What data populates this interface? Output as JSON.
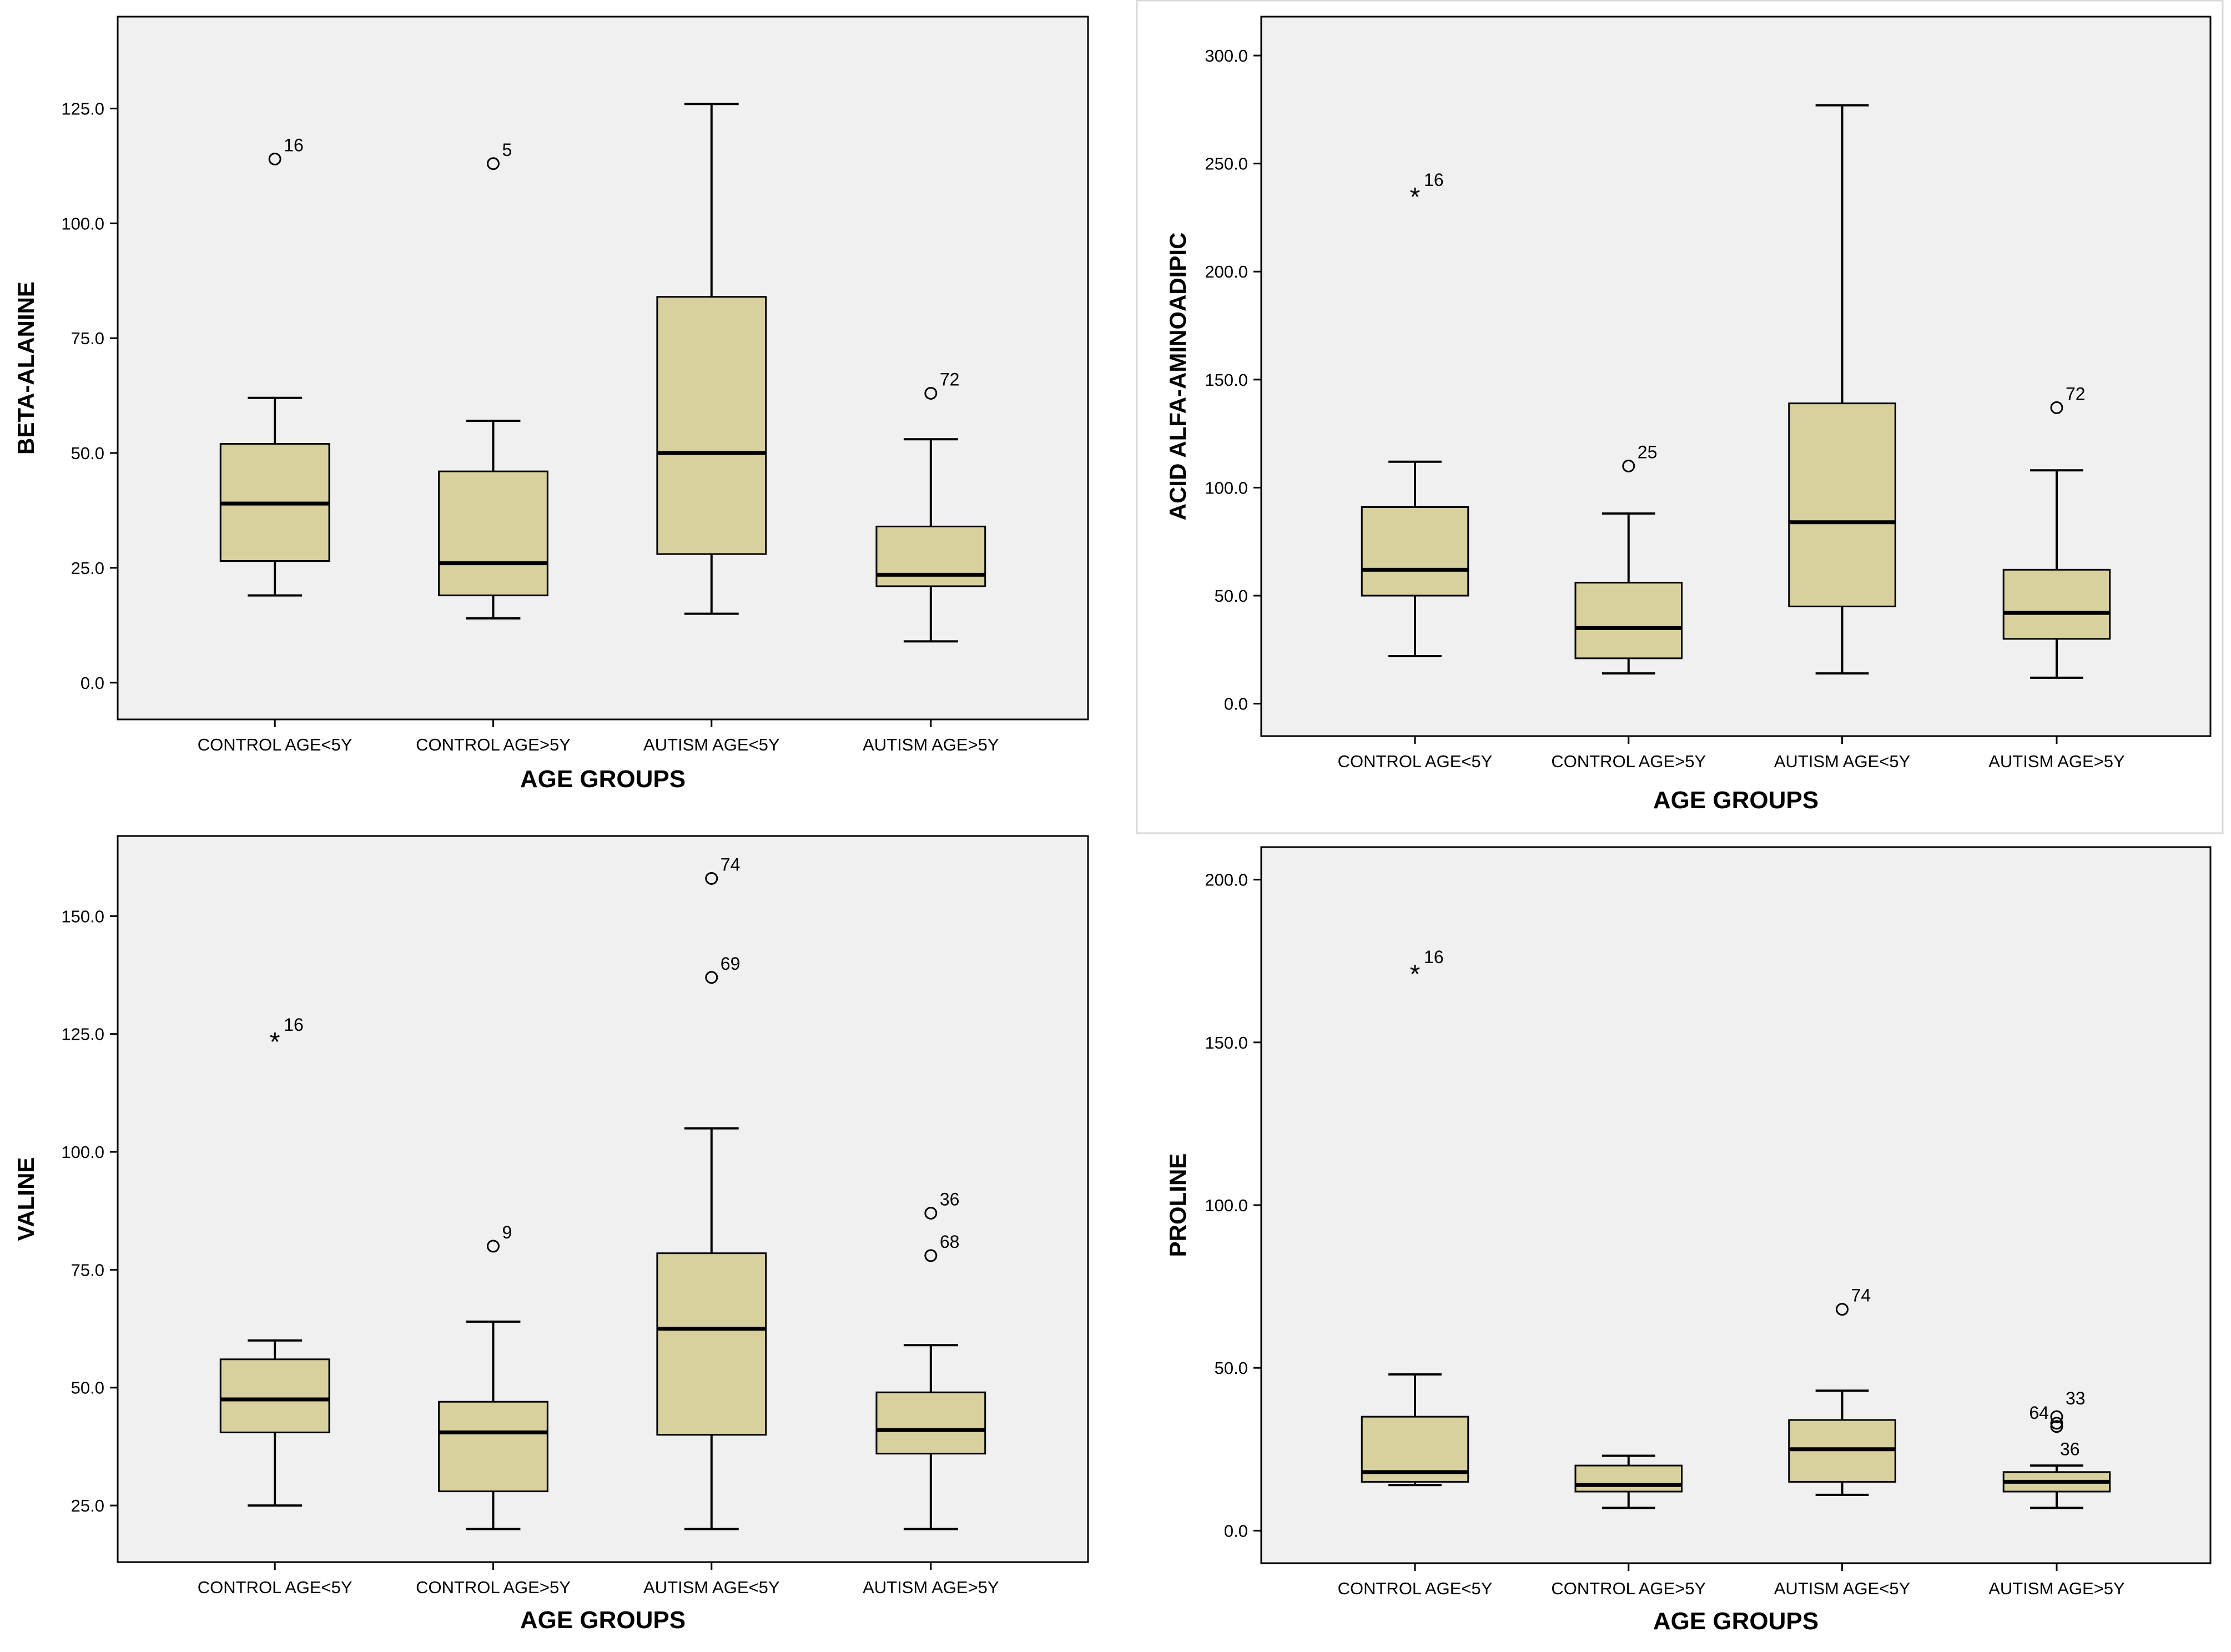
{
  "colors": {
    "plot_background": "#f0f0f0",
    "box_fill": "#d8d19e",
    "line": "#000000",
    "page_background": "#ffffff"
  },
  "chart_data": [
    {
      "type": "box",
      "title": "",
      "xlabel": "AGE GROUPS",
      "ylabel": "BETA-ALANINE",
      "categories": [
        "CONTROL AGE<5Y",
        "CONTROL AGE>5Y",
        "AUTISM AGE<5Y",
        "AUTISM AGE>5Y"
      ],
      "ylim": [
        -8,
        145
      ],
      "yticks": [
        0,
        25,
        50,
        75,
        100,
        125
      ],
      "ytick_labels": [
        "0.0",
        "25.0",
        "50.0",
        "75.0",
        "100.0",
        "125.0"
      ],
      "boxes": [
        {
          "min": 19,
          "q1": 26.5,
          "median": 39,
          "q3": 52,
          "max": 62
        },
        {
          "min": 14,
          "q1": 19,
          "median": 26,
          "q3": 46,
          "max": 57
        },
        {
          "min": 15,
          "q1": 28,
          "median": 50,
          "q3": 84,
          "max": 126
        },
        {
          "min": 9,
          "q1": 21,
          "median": 23.5,
          "q3": 34,
          "max": 53
        }
      ],
      "outliers": [
        {
          "group": 0,
          "value": 114,
          "label": "16",
          "marker": "circle"
        },
        {
          "group": 1,
          "value": 113,
          "label": "5",
          "marker": "circle"
        },
        {
          "group": 3,
          "value": 63,
          "label": "72",
          "marker": "circle"
        }
      ]
    },
    {
      "type": "box",
      "title": "",
      "xlabel": "AGE GROUPS",
      "ylabel": "ACID ALFA-AMINOADIPIC",
      "categories": [
        "CONTROL AGE<5Y",
        "CONTROL AGE>5Y",
        "AUTISM AGE<5Y",
        "AUTISM AGE>5Y"
      ],
      "ylim": [
        -15,
        318
      ],
      "yticks": [
        0,
        50,
        100,
        150,
        200,
        250,
        300
      ],
      "ytick_labels": [
        "0.0",
        "50.0",
        "100.0",
        "150.0",
        "200.0",
        "250.0",
        "300.0"
      ],
      "boxes": [
        {
          "min": 22,
          "q1": 50,
          "median": 62,
          "q3": 91,
          "max": 112
        },
        {
          "min": 14,
          "q1": 21,
          "median": 35,
          "q3": 56,
          "max": 88
        },
        {
          "min": 14,
          "q1": 45,
          "median": 84,
          "q3": 139,
          "max": 277
        },
        {
          "min": 12,
          "q1": 30,
          "median": 42,
          "q3": 62,
          "max": 108
        }
      ],
      "outliers": [
        {
          "group": 0,
          "value": 236,
          "label": "16",
          "marker": "star"
        },
        {
          "group": 1,
          "value": 110,
          "label": "25",
          "marker": "circle"
        },
        {
          "group": 3,
          "value": 137,
          "label": "72",
          "marker": "circle"
        }
      ]
    },
    {
      "type": "box",
      "title": "",
      "xlabel": "AGE GROUPS",
      "ylabel": "VALINE",
      "categories": [
        "CONTROL AGE<5Y",
        "CONTROL AGE>5Y",
        "AUTISM AGE<5Y",
        "AUTISM AGE>5Y"
      ],
      "ylim": [
        13,
        167
      ],
      "yticks": [
        25,
        50,
        75,
        100,
        125,
        150
      ],
      "ytick_labels": [
        "25.0",
        "50.0",
        "75.0",
        "100.0",
        "125.0",
        "150.0"
      ],
      "boxes": [
        {
          "min": 25,
          "q1": 40.5,
          "median": 47.5,
          "q3": 56,
          "max": 60
        },
        {
          "min": 20,
          "q1": 28,
          "median": 40.5,
          "q3": 47,
          "max": 64
        },
        {
          "min": 20,
          "q1": 40,
          "median": 62.5,
          "q3": 78.5,
          "max": 105
        },
        {
          "min": 20,
          "q1": 36,
          "median": 41,
          "q3": 49,
          "max": 59
        }
      ],
      "outliers": [
        {
          "group": 0,
          "value": 124,
          "label": "16",
          "marker": "star"
        },
        {
          "group": 1,
          "value": 80,
          "label": "9",
          "marker": "circle"
        },
        {
          "group": 2,
          "value": 158,
          "label": "74",
          "marker": "circle"
        },
        {
          "group": 2,
          "value": 137,
          "label": "69",
          "marker": "circle"
        },
        {
          "group": 3,
          "value": 87,
          "label": "36",
          "marker": "circle"
        },
        {
          "group": 3,
          "value": 78,
          "label": "68",
          "marker": "circle"
        }
      ]
    },
    {
      "type": "box",
      "title": "",
      "xlabel": "AGE GROUPS",
      "ylabel": "PROLINE",
      "categories": [
        "CONTROL AGE<5Y",
        "CONTROL AGE>5Y",
        "AUTISM AGE<5Y",
        "AUTISM AGE>5Y"
      ],
      "ylim": [
        -10,
        210
      ],
      "yticks": [
        0,
        50,
        100,
        150,
        200
      ],
      "ytick_labels": [
        "0.0",
        "50.0",
        "100.0",
        "150.0",
        "200.0"
      ],
      "boxes": [
        {
          "min": 14,
          "q1": 15,
          "median": 18,
          "q3": 35,
          "max": 48
        },
        {
          "min": 7,
          "q1": 12,
          "median": 14,
          "q3": 20,
          "max": 23
        },
        {
          "min": 11,
          "q1": 15,
          "median": 25,
          "q3": 34,
          "max": 43
        },
        {
          "min": 7,
          "q1": 12,
          "median": 15,
          "q3": 18,
          "max": 20
        }
      ],
      "outliers": [
        {
          "group": 0,
          "value": 172,
          "label": "16",
          "marker": "star"
        },
        {
          "group": 2,
          "value": 68,
          "label": "74",
          "marker": "circle"
        },
        {
          "group": 3,
          "value": 35,
          "label": "33",
          "marker": "circle"
        },
        {
          "group": 3,
          "value": 33,
          "label": "64",
          "marker": "circle"
        },
        {
          "group": 3,
          "value": 32,
          "label": "36",
          "marker": "circle"
        }
      ]
    }
  ]
}
